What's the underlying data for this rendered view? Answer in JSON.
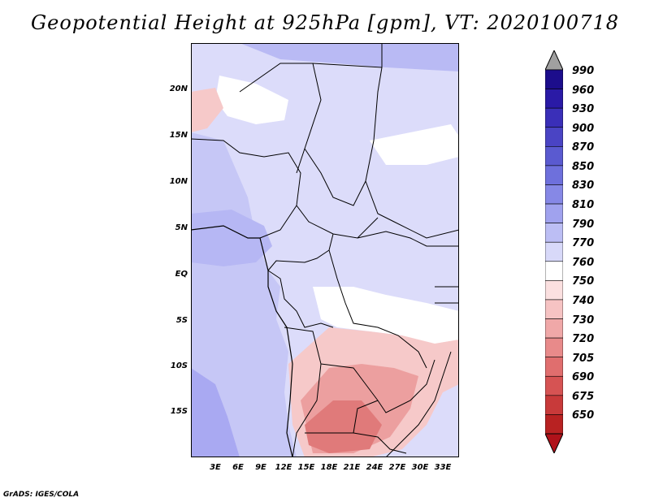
{
  "title": "Geopotential Height at 925hPa [gpm], VT: 2020100718",
  "footer": "GrADS: IGES/COLA",
  "map": {
    "lat_labels": [
      "20N",
      "15N",
      "10N",
      "5N",
      "EQ",
      "5S",
      "10S",
      "15S"
    ],
    "lon_labels": [
      "3E",
      "6E",
      "9E",
      "12E",
      "15E",
      "18E",
      "21E",
      "24E",
      "27E",
      "30E",
      "33E"
    ]
  },
  "colorbar": {
    "levels": [
      "990",
      "960",
      "930",
      "900",
      "870",
      "850",
      "830",
      "810",
      "790",
      "770",
      "760",
      "750",
      "740",
      "730",
      "720",
      "705",
      "690",
      "675",
      "650"
    ],
    "colors": [
      "#1c0d8c",
      "#2a1aa6",
      "#3a2fb8",
      "#4a44c4",
      "#5a5ad0",
      "#6e70dc",
      "#8688e6",
      "#a0a2ee",
      "#bcbef4",
      "#d8d9f9",
      "#ffffff",
      "#fbe0e0",
      "#f6c3c3",
      "#f0a8a8",
      "#e88a8a",
      "#e06e6e",
      "#d65353",
      "#c83a3a",
      "#b82222"
    ]
  },
  "colors": {
    "sea": "#c8c9f7",
    "land": "#dcdcfa",
    "high": "#a9a9f2",
    "low1": "#f6c9c9",
    "low2": "#ec9f9f",
    "low3": "#e07a7a"
  }
}
